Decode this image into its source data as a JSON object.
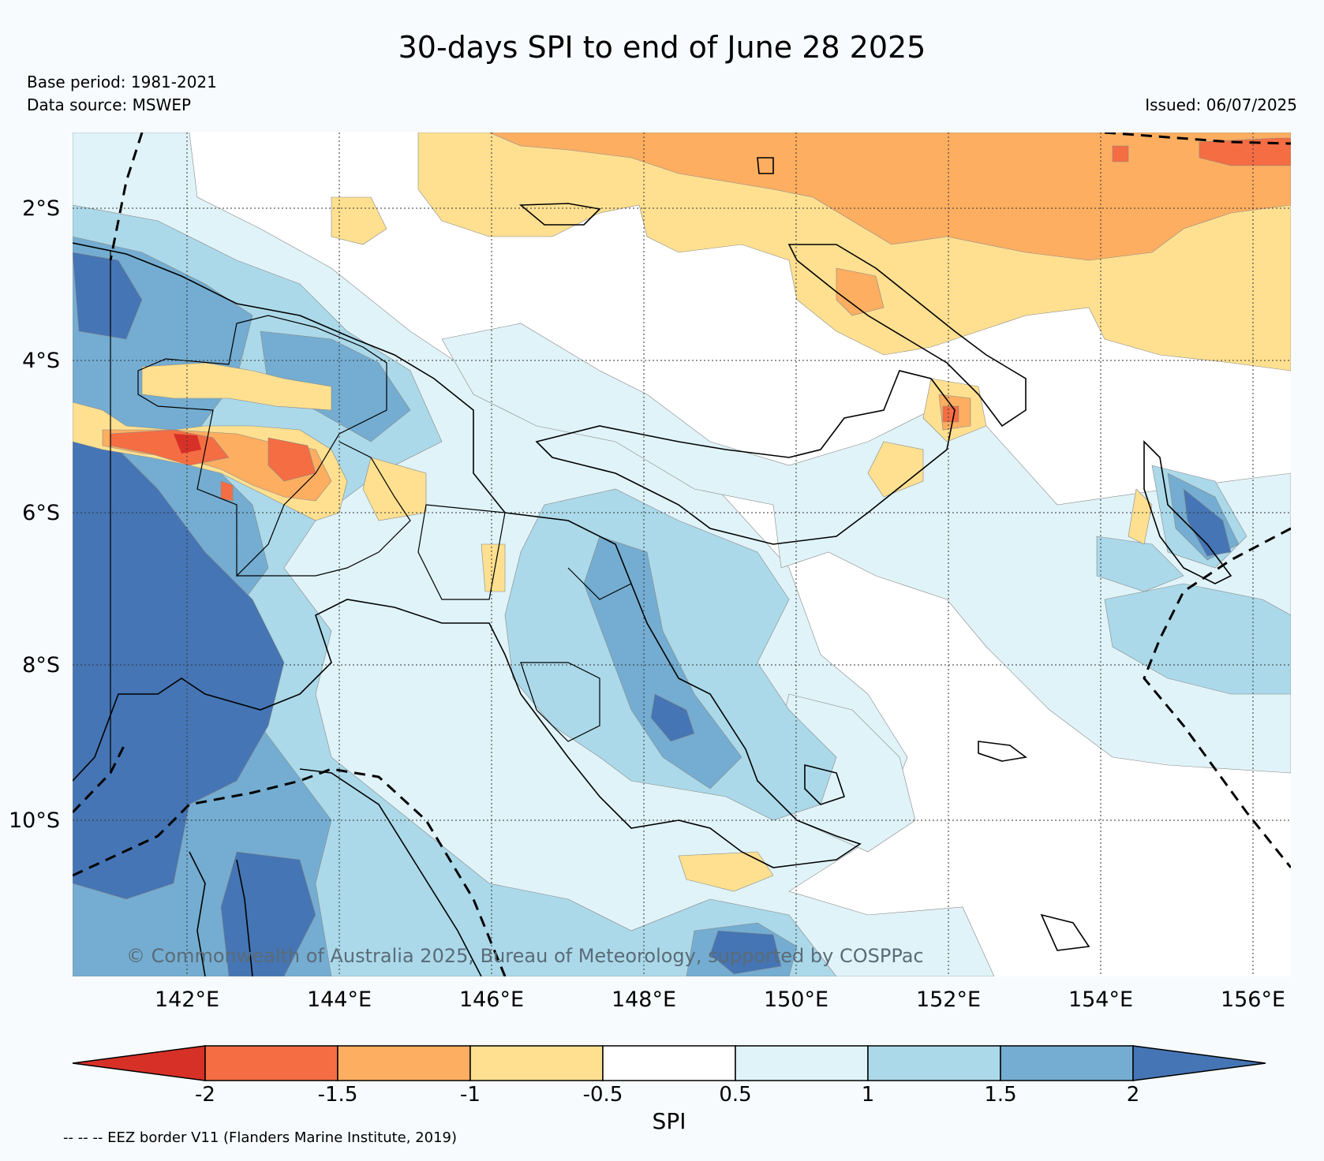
{
  "title": "30-days SPI to end of June 28 2025",
  "base_period": "Base period: 1981-2021",
  "data_source": "Data source: MSWEP",
  "issued": "Issued: 06/07/2025",
  "watermark": "© Commonwealth of Australia 2025, Bureau of Meteorology, supported by COSPPac",
  "footnote": "-- -- -- EEZ border V11 (Flanders Marine Institute, 2019)",
  "map": {
    "lon_labels": [
      "142°E",
      "144°E",
      "146°E",
      "148°E",
      "150°E",
      "152°E",
      "154°E",
      "156°E"
    ],
    "lat_labels": [
      "2°S",
      "4°S",
      "6°S",
      "8°S",
      "10°S"
    ],
    "lon_range": [
      140.5,
      156.5
    ],
    "lat_range": [
      -11.8,
      -0.7
    ]
  },
  "colorbar": {
    "title": "SPI",
    "ticks": [
      "-2",
      "-1.5",
      "-1",
      "-0.5",
      "0.5",
      "1",
      "1.5",
      "2"
    ],
    "colors": [
      "#d73027",
      "#f46d43",
      "#fdae61",
      "#fee090",
      "#ffffff",
      "#e0f3f8",
      "#abd9e9",
      "#74add1",
      "#4575b4"
    ]
  }
}
